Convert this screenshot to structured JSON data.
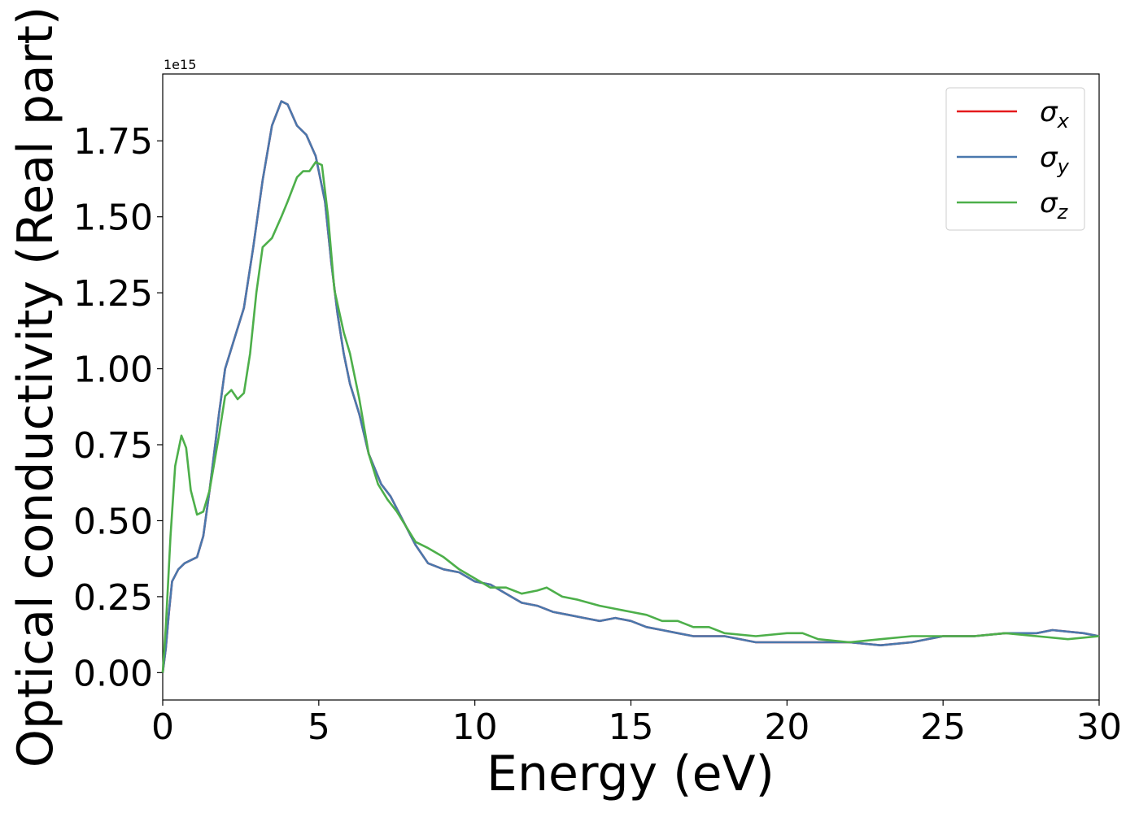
{
  "chart_data": {
    "type": "line",
    "xlabel": "Energy (eV)",
    "ylabel": "Optical conductivity (Real part)",
    "offset_text": "1e15",
    "xlim": [
      0,
      30
    ],
    "ylim": [
      -0.09,
      1.97
    ],
    "scale": 1000000000000000.0,
    "xticks": [
      0,
      5,
      10,
      15,
      20,
      25,
      30
    ],
    "xtick_labels": [
      "0",
      "5",
      "10",
      "15",
      "20",
      "25",
      "30"
    ],
    "yticks": [
      0.0,
      0.25,
      0.5,
      0.75,
      1.0,
      1.25,
      1.5,
      1.75
    ],
    "ytick_labels": [
      "0.00",
      "0.25",
      "0.50",
      "0.75",
      "1.00",
      "1.25",
      "1.50",
      "1.75"
    ],
    "grid": false,
    "legend_position": "top-right",
    "series": [
      {
        "name": "σ",
        "subscript": "x",
        "color": "#e41a1c",
        "points": [
          [
            0,
            0
          ],
          [
            0.1,
            0.08
          ],
          [
            0.2,
            0.2
          ],
          [
            0.3,
            0.3
          ],
          [
            0.5,
            0.34
          ],
          [
            0.7,
            0.36
          ],
          [
            0.9,
            0.37
          ],
          [
            1.1,
            0.38
          ],
          [
            1.3,
            0.45
          ],
          [
            1.5,
            0.6
          ],
          [
            1.8,
            0.85
          ],
          [
            2.0,
            1.0
          ],
          [
            2.3,
            1.1
          ],
          [
            2.6,
            1.2
          ],
          [
            2.9,
            1.4
          ],
          [
            3.2,
            1.62
          ],
          [
            3.5,
            1.8
          ],
          [
            3.8,
            1.88
          ],
          [
            4.0,
            1.87
          ],
          [
            4.3,
            1.8
          ],
          [
            4.6,
            1.77
          ],
          [
            4.9,
            1.7
          ],
          [
            5.2,
            1.55
          ],
          [
            5.4,
            1.35
          ],
          [
            5.6,
            1.18
          ],
          [
            5.8,
            1.05
          ],
          [
            6.0,
            0.95
          ],
          [
            6.3,
            0.85
          ],
          [
            6.6,
            0.72
          ],
          [
            7.0,
            0.62
          ],
          [
            7.3,
            0.58
          ],
          [
            7.7,
            0.5
          ],
          [
            8.1,
            0.42
          ],
          [
            8.5,
            0.36
          ],
          [
            9.0,
            0.34
          ],
          [
            9.5,
            0.33
          ],
          [
            10.0,
            0.3
          ],
          [
            10.5,
            0.29
          ],
          [
            11.0,
            0.26
          ],
          [
            11.5,
            0.23
          ],
          [
            12.0,
            0.22
          ],
          [
            12.5,
            0.2
          ],
          [
            13.0,
            0.19
          ],
          [
            13.5,
            0.18
          ],
          [
            14.0,
            0.17
          ],
          [
            14.5,
            0.18
          ],
          [
            15.0,
            0.17
          ],
          [
            15.5,
            0.15
          ],
          [
            16.0,
            0.14
          ],
          [
            16.5,
            0.13
          ],
          [
            17.0,
            0.12
          ],
          [
            18.0,
            0.12
          ],
          [
            19.0,
            0.1
          ],
          [
            20.0,
            0.1
          ],
          [
            21.0,
            0.1
          ],
          [
            22.0,
            0.1
          ],
          [
            23.0,
            0.09
          ],
          [
            24.0,
            0.1
          ],
          [
            25.0,
            0.12
          ],
          [
            26.0,
            0.12
          ],
          [
            27.0,
            0.13
          ],
          [
            28.0,
            0.13
          ],
          [
            28.5,
            0.14
          ],
          [
            29.5,
            0.13
          ],
          [
            30.0,
            0.12
          ]
        ]
      },
      {
        "name": "σ",
        "subscript": "y",
        "color": "#4a78ad",
        "points": [
          [
            0,
            0
          ],
          [
            0.1,
            0.08
          ],
          [
            0.2,
            0.2
          ],
          [
            0.3,
            0.3
          ],
          [
            0.5,
            0.34
          ],
          [
            0.7,
            0.36
          ],
          [
            0.9,
            0.37
          ],
          [
            1.1,
            0.38
          ],
          [
            1.3,
            0.45
          ],
          [
            1.5,
            0.6
          ],
          [
            1.8,
            0.85
          ],
          [
            2.0,
            1.0
          ],
          [
            2.3,
            1.1
          ],
          [
            2.6,
            1.2
          ],
          [
            2.9,
            1.4
          ],
          [
            3.2,
            1.62
          ],
          [
            3.5,
            1.8
          ],
          [
            3.8,
            1.88
          ],
          [
            4.0,
            1.87
          ],
          [
            4.3,
            1.8
          ],
          [
            4.6,
            1.77
          ],
          [
            4.9,
            1.7
          ],
          [
            5.2,
            1.55
          ],
          [
            5.4,
            1.35
          ],
          [
            5.6,
            1.18
          ],
          [
            5.8,
            1.05
          ],
          [
            6.0,
            0.95
          ],
          [
            6.3,
            0.85
          ],
          [
            6.6,
            0.72
          ],
          [
            7.0,
            0.62
          ],
          [
            7.3,
            0.58
          ],
          [
            7.7,
            0.5
          ],
          [
            8.1,
            0.42
          ],
          [
            8.5,
            0.36
          ],
          [
            9.0,
            0.34
          ],
          [
            9.5,
            0.33
          ],
          [
            10.0,
            0.3
          ],
          [
            10.5,
            0.29
          ],
          [
            11.0,
            0.26
          ],
          [
            11.5,
            0.23
          ],
          [
            12.0,
            0.22
          ],
          [
            12.5,
            0.2
          ],
          [
            13.0,
            0.19
          ],
          [
            13.5,
            0.18
          ],
          [
            14.0,
            0.17
          ],
          [
            14.5,
            0.18
          ],
          [
            15.0,
            0.17
          ],
          [
            15.5,
            0.15
          ],
          [
            16.0,
            0.14
          ],
          [
            16.5,
            0.13
          ],
          [
            17.0,
            0.12
          ],
          [
            18.0,
            0.12
          ],
          [
            19.0,
            0.1
          ],
          [
            20.0,
            0.1
          ],
          [
            21.0,
            0.1
          ],
          [
            22.0,
            0.1
          ],
          [
            23.0,
            0.09
          ],
          [
            24.0,
            0.1
          ],
          [
            25.0,
            0.12
          ],
          [
            26.0,
            0.12
          ],
          [
            27.0,
            0.13
          ],
          [
            28.0,
            0.13
          ],
          [
            28.5,
            0.14
          ],
          [
            29.5,
            0.13
          ],
          [
            30.0,
            0.12
          ]
        ]
      },
      {
        "name": "σ",
        "subscript": "z",
        "color": "#4daf4a",
        "points": [
          [
            0,
            0
          ],
          [
            0.1,
            0.15
          ],
          [
            0.25,
            0.45
          ],
          [
            0.4,
            0.68
          ],
          [
            0.6,
            0.78
          ],
          [
            0.75,
            0.74
          ],
          [
            0.9,
            0.6
          ],
          [
            1.1,
            0.52
          ],
          [
            1.3,
            0.53
          ],
          [
            1.5,
            0.6
          ],
          [
            1.8,
            0.78
          ],
          [
            2.0,
            0.91
          ],
          [
            2.2,
            0.93
          ],
          [
            2.4,
            0.9
          ],
          [
            2.6,
            0.92
          ],
          [
            2.8,
            1.05
          ],
          [
            3.0,
            1.25
          ],
          [
            3.2,
            1.4
          ],
          [
            3.5,
            1.43
          ],
          [
            3.8,
            1.5
          ],
          [
            4.0,
            1.55
          ],
          [
            4.3,
            1.63
          ],
          [
            4.5,
            1.65
          ],
          [
            4.7,
            1.65
          ],
          [
            4.9,
            1.68
          ],
          [
            5.1,
            1.67
          ],
          [
            5.3,
            1.5
          ],
          [
            5.5,
            1.26
          ],
          [
            5.8,
            1.12
          ],
          [
            6.0,
            1.05
          ],
          [
            6.3,
            0.9
          ],
          [
            6.6,
            0.72
          ],
          [
            6.9,
            0.62
          ],
          [
            7.2,
            0.57
          ],
          [
            7.5,
            0.53
          ],
          [
            7.8,
            0.48
          ],
          [
            8.1,
            0.43
          ],
          [
            8.5,
            0.41
          ],
          [
            9.0,
            0.38
          ],
          [
            9.5,
            0.34
          ],
          [
            10.0,
            0.31
          ],
          [
            10.5,
            0.28
          ],
          [
            11.0,
            0.28
          ],
          [
            11.5,
            0.26
          ],
          [
            12.0,
            0.27
          ],
          [
            12.3,
            0.28
          ],
          [
            12.8,
            0.25
          ],
          [
            13.3,
            0.24
          ],
          [
            14.0,
            0.22
          ],
          [
            14.5,
            0.21
          ],
          [
            15.0,
            0.2
          ],
          [
            15.5,
            0.19
          ],
          [
            16.0,
            0.17
          ],
          [
            16.5,
            0.17
          ],
          [
            17.0,
            0.15
          ],
          [
            17.5,
            0.15
          ],
          [
            18.0,
            0.13
          ],
          [
            19.0,
            0.12
          ],
          [
            20.0,
            0.13
          ],
          [
            20.5,
            0.13
          ],
          [
            21.0,
            0.11
          ],
          [
            22.0,
            0.1
          ],
          [
            23.0,
            0.11
          ],
          [
            24.0,
            0.12
          ],
          [
            25.0,
            0.12
          ],
          [
            26.0,
            0.12
          ],
          [
            27.0,
            0.13
          ],
          [
            28.0,
            0.12
          ],
          [
            29.0,
            0.11
          ],
          [
            30.0,
            0.12
          ]
        ]
      }
    ]
  }
}
